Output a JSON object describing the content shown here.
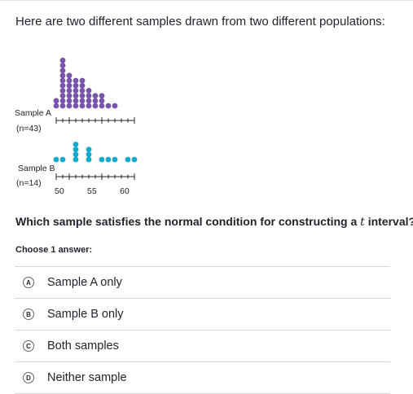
{
  "intro": "Here are two different samples drawn from two different populations:",
  "plot": {
    "sample_a": {
      "label": "Sample A",
      "n": "(n=43)",
      "color": "#7854ab"
    },
    "sample_b": {
      "label": "Sample B",
      "n": "(n=14)",
      "color": "#11accd"
    },
    "tick_labels": [
      "50",
      "55",
      "60"
    ]
  },
  "chart_data": [
    {
      "type": "dot plot",
      "series_name": "Sample A",
      "x": [
        48,
        49,
        50,
        51,
        52,
        53,
        54,
        55,
        56,
        57,
        58,
        59,
        60,
        61,
        62,
        63
      ],
      "counts": [
        2,
        10,
        7,
        6,
        6,
        4,
        3,
        3,
        1,
        1,
        0,
        0,
        0,
        0,
        0,
        0
      ],
      "axis_range": [
        48,
        60
      ]
    },
    {
      "type": "dot plot",
      "series_name": "Sample B",
      "x": [
        48,
        49,
        50,
        51,
        52,
        53,
        54,
        55,
        56,
        57,
        58,
        59,
        60
      ],
      "counts": [
        1,
        1,
        0,
        4,
        0,
        3,
        0,
        1,
        1,
        1,
        0,
        1,
        1
      ],
      "axis_range": [
        48,
        60
      ]
    }
  ],
  "question": {
    "text_before": "Which sample satisfies the normal condition for constructing a ",
    "variable": "t",
    "text_after": " interval?"
  },
  "choose_label": "Choose 1 answer:",
  "choices": [
    {
      "letter": "A",
      "text": "Sample A only"
    },
    {
      "letter": "B",
      "text": "Sample B only"
    },
    {
      "letter": "C",
      "text": "Both samples"
    },
    {
      "letter": "D",
      "text": "Neither sample"
    }
  ]
}
